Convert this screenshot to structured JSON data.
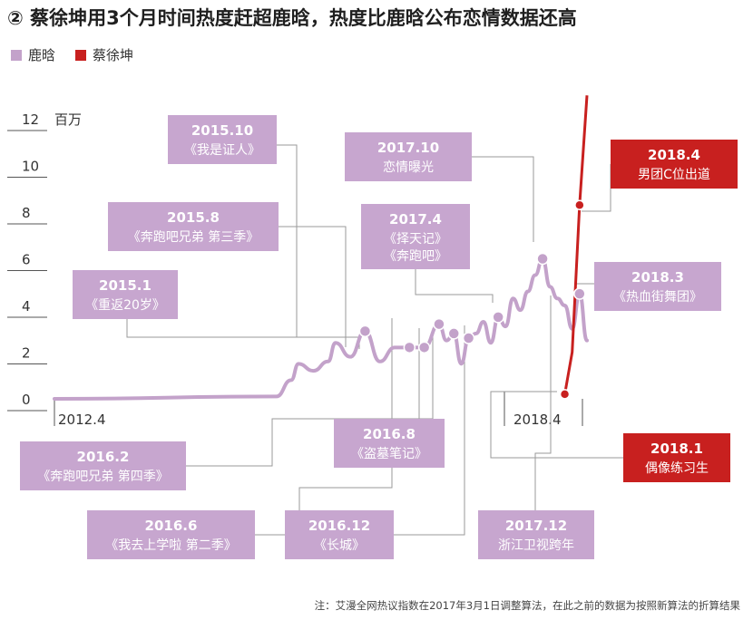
{
  "title": "② 蔡徐坤用3个月时间热度赶超鹿晗，热度比鹿晗公布恋情数据还高",
  "note": "注：艾漫全网热议指数在2017年3月1日调整算法，在此之前的数据为按照新算法的折算结果",
  "colors": {
    "luhan": "#c3a2ca",
    "caixukun": "#c8201f",
    "luhan_box": "#c7a6cf",
    "caixukun_box": "#c8201f",
    "leader": "#9a9a9a",
    "axis_text": "#333333"
  },
  "chart_data": {
    "type": "line",
    "y_unit": "百万",
    "y_ticks": [
      "0",
      "2",
      "4",
      "6",
      "8",
      "10",
      "12"
    ],
    "y_tick_values": [
      0,
      2,
      4,
      6,
      8,
      10,
      12
    ],
    "ylim": [
      0,
      12
    ],
    "x_start_label": "2012.4",
    "x_mid_label": "2018.4",
    "legend": [
      {
        "name": "鹿晗",
        "color": "#c3a2ca"
      },
      {
        "name": "蔡徐坤",
        "color": "#c8201f"
      }
    ],
    "series": [
      {
        "name": "鹿晗",
        "x": [
          "2012-04",
          "2014-10",
          "2014-12",
          "2015-01",
          "2015-03",
          "2015-05",
          "2015-06",
          "2015-08",
          "2015-10",
          "2015-12",
          "2016-02",
          "2016-04",
          "2016-06",
          "2016-08",
          "2016-09",
          "2016-10",
          "2016-11",
          "2016-12",
          "2017-01",
          "2017-02",
          "2017-03",
          "2017-04",
          "2017-05",
          "2017-06",
          "2017-07",
          "2017-08",
          "2017-09",
          "2017-10",
          "2017-11",
          "2017-12",
          "2018-01",
          "2018-02",
          "2018-03",
          "2018-04"
        ],
        "values": [
          0.0,
          0.1,
          0.8,
          1.5,
          1.2,
          1.6,
          2.4,
          1.8,
          2.9,
          1.6,
          2.2,
          2.2,
          2.2,
          3.2,
          2.5,
          2.8,
          1.5,
          2.6,
          2.8,
          3.3,
          2.4,
          3.5,
          3.1,
          4.3,
          3.8,
          4.6,
          5.3,
          6.0,
          4.8,
          4.3,
          4.0,
          3.0,
          4.5,
          2.5
        ]
      },
      {
        "name": "蔡徐坤",
        "x": [
          "2018-01",
          "2018-02",
          "2018-03",
          "2018-04"
        ],
        "values": [
          0.2,
          2.0,
          8.3,
          13.0
        ]
      }
    ],
    "markers": [
      {
        "series": "鹿晗",
        "x": "2015-10",
        "y": 2.9
      },
      {
        "series": "鹿晗",
        "x": "2016-04",
        "y": 2.2
      },
      {
        "series": "鹿晗",
        "x": "2016-06",
        "y": 2.2
      },
      {
        "series": "鹿晗",
        "x": "2016-08",
        "y": 3.2
      },
      {
        "series": "鹿晗",
        "x": "2016-10",
        "y": 2.8
      },
      {
        "series": "鹿晗",
        "x": "2016-12",
        "y": 2.6
      },
      {
        "series": "鹿晗",
        "x": "2017-04",
        "y": 3.5
      },
      {
        "series": "鹿晗",
        "x": "2017-10",
        "y": 6.0
      },
      {
        "series": "鹿晗",
        "x": "2018-03",
        "y": 4.5
      },
      {
        "series": "蔡徐坤",
        "x": "2018-01",
        "y": 0.2
      },
      {
        "series": "蔡徐坤",
        "x": "2018-03",
        "y": 8.3
      }
    ],
    "annotations": [
      {
        "date": "2015.10",
        "text": "《我是证人》",
        "series": "鹿晗"
      },
      {
        "date": "2015.8",
        "text": "《奔跑吧兄弟 第三季》",
        "series": "鹿晗"
      },
      {
        "date": "2015.1",
        "text": "《重返20岁》",
        "series": "鹿晗"
      },
      {
        "date": "2017.10",
        "text": "恋情曝光",
        "series": "鹿晗"
      },
      {
        "date": "2017.4",
        "text": "《择天记》\n《奔跑吧》",
        "series": "鹿晗"
      },
      {
        "date": "2018.3",
        "text": "《热血街舞团》",
        "series": "鹿晗"
      },
      {
        "date": "2016.8",
        "text": "《盗墓笔记》",
        "series": "鹿晗"
      },
      {
        "date": "2016.2",
        "text": "《奔跑吧兄弟 第四季》",
        "series": "鹿晗"
      },
      {
        "date": "2016.6",
        "text": "《我去上学啦 第二季》",
        "series": "鹿晗"
      },
      {
        "date": "2016.12",
        "text": "《长城》",
        "series": "鹿晗"
      },
      {
        "date": "2017.12",
        "text": "浙江卫视跨年",
        "series": "鹿晗"
      },
      {
        "date": "2018.4",
        "text": "男团C位出道",
        "series": "蔡徐坤"
      },
      {
        "date": "2018.1",
        "text": "偶像练习生",
        "series": "蔡徐坤"
      }
    ]
  }
}
